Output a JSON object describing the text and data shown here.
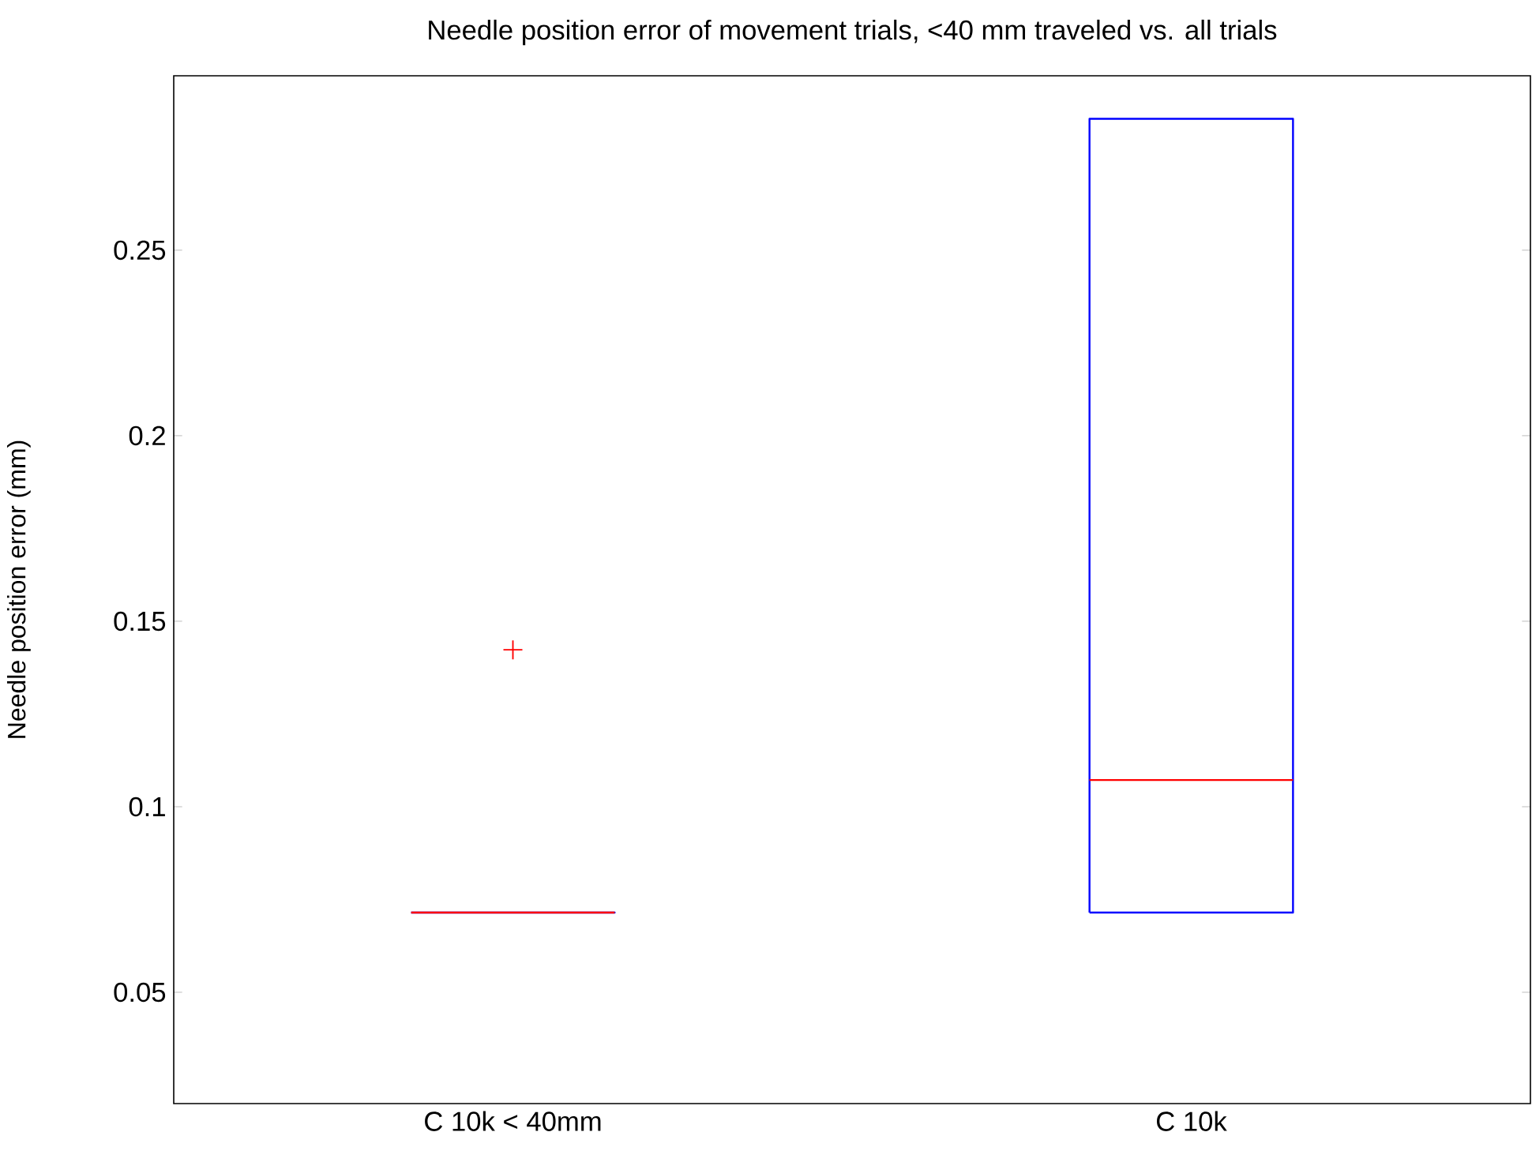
{
  "chart_data": {
    "type": "box",
    "title": "Needle position error of movement trials, <40 mm traveled vs. all trials",
    "ylabel": "Needle position error (mm)",
    "categories": [
      "C 10k < 40mm",
      "C 10k"
    ],
    "series": [
      {
        "color": "#0000ff",
        "boxes": [
          {
            "low": 0.0715,
            "q1": 0.0715,
            "median": 0.0715,
            "q3": 0.0715,
            "high": 0.0715,
            "outliers": [
              0.1423
            ]
          },
          {
            "low": 0.0715,
            "q1": 0.0715,
            "median": 0.1072,
            "q3": 0.2854,
            "high": 0.2854
          }
        ]
      }
    ],
    "ylim": [
      0.02,
      0.297
    ],
    "yticks": [
      0.05,
      0.1,
      0.15,
      0.2,
      0.25
    ],
    "grid": false
  }
}
